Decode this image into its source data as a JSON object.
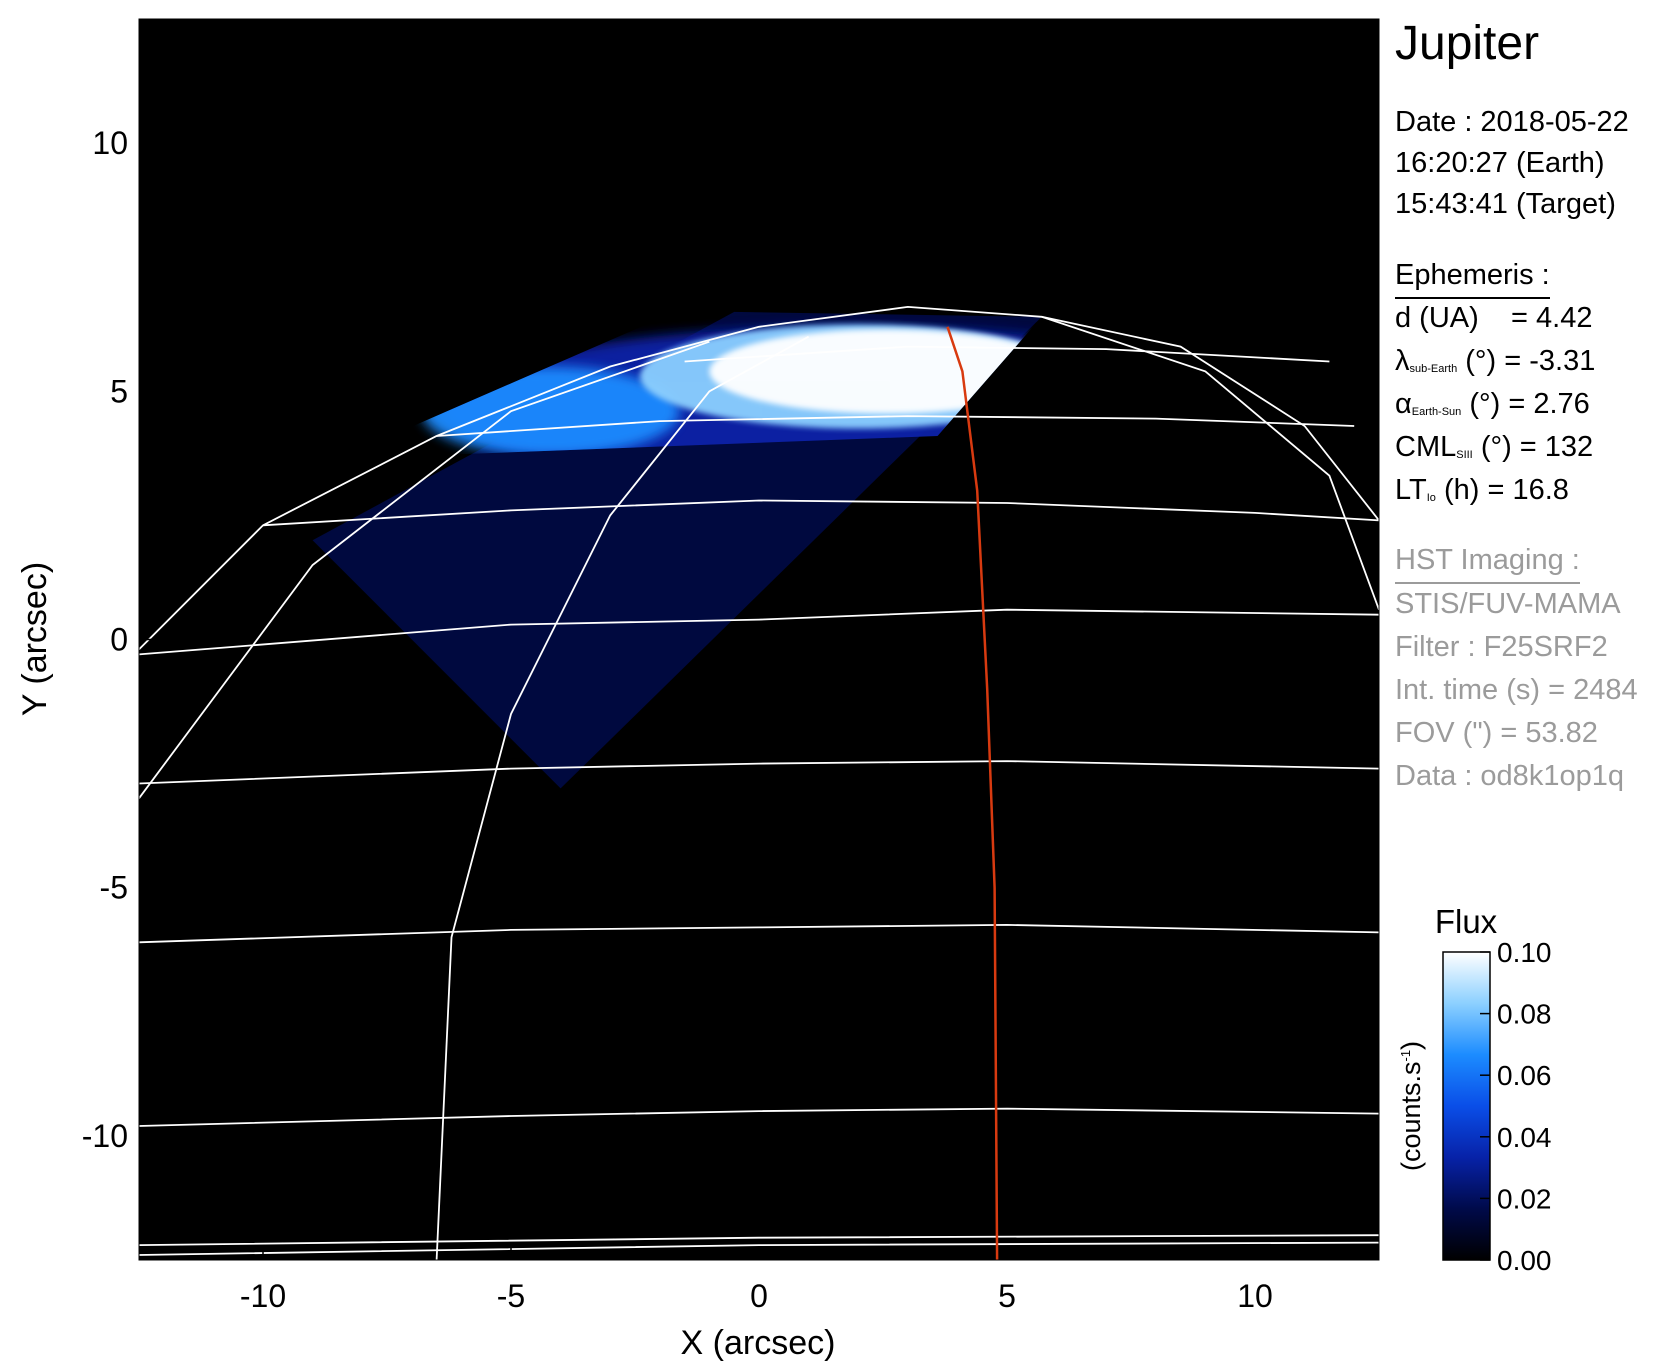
{
  "chart_data": {
    "type": "heatmap",
    "xlabel": "X (arcsec)",
    "ylabel": "Y (arcsec)",
    "xlim": [
      -12.5,
      12.5
    ],
    "ylim": [
      -12.5,
      12.5
    ],
    "xticks": [
      -10,
      -5,
      0,
      5,
      10
    ],
    "xtick_labels": [
      "-10",
      "-5",
      "0",
      "5",
      "10"
    ],
    "yticks": [
      -10,
      -5,
      0,
      5,
      10
    ],
    "ytick_labels": [
      "-10",
      "-5",
      "0",
      "5",
      "10"
    ],
    "colormap": [
      "#000000",
      "#000a4a",
      "#0722a8",
      "#0a4ee8",
      "#1c8cff",
      "#8cd0ff",
      "#ffffff"
    ],
    "colorbar": {
      "title": "Flux",
      "label": "(counts.s",
      "label_sup": "-1",
      "label_end": ")",
      "min": 0.0,
      "max": 0.1,
      "ticks": [
        "0.00",
        "0.02",
        "0.04",
        "0.06",
        "0.08",
        "0.10"
      ]
    },
    "io_footprint_color": "#d83a10",
    "grid_color": "#ffffff",
    "observation_region": {
      "corners": [
        [
          -4.0,
          -3.0
        ],
        [
          5.7,
          6.5
        ],
        [
          -9.0,
          2.0
        ]
      ],
      "note_value": "quadrilateral of observed pixels"
    },
    "auroral_emission": {
      "peak_flux": 0.1,
      "outer_flux": 0.04,
      "background_flux": 0.02
    }
  },
  "panel": {
    "target": "Jupiter",
    "date_line": "Date : 2018-05-22",
    "earth_time": "16:20:27 (Earth)",
    "target_time": "15:43:41 (Target)",
    "ephemeris_heading": "Ephemeris :",
    "d_label": "d (UA)",
    "d_value": "= 4.42",
    "lat_symbol": "λ",
    "lat_sub": "sub-Earth",
    "lat_rest": "(°) = -3.31",
    "phase_symbol": "α",
    "phase_sub": "Earth-Sun",
    "phase_rest": "(°) = 2.76",
    "cml_label": "CML",
    "cml_sub": "SIII",
    "cml_rest": "(°) = 132",
    "lt_label": "LT",
    "lt_sub": "Io",
    "lt_rest": "(h) = 16.8",
    "hst_heading": "HST Imaging :",
    "instrument": "STIS/FUV-MAMA",
    "filter": "Filter : F25SRF2",
    "int_time": "Int. time (s) = 2484",
    "fov": "FOV (\") = 53.82",
    "data_id": "Data : od8k1op1q"
  }
}
